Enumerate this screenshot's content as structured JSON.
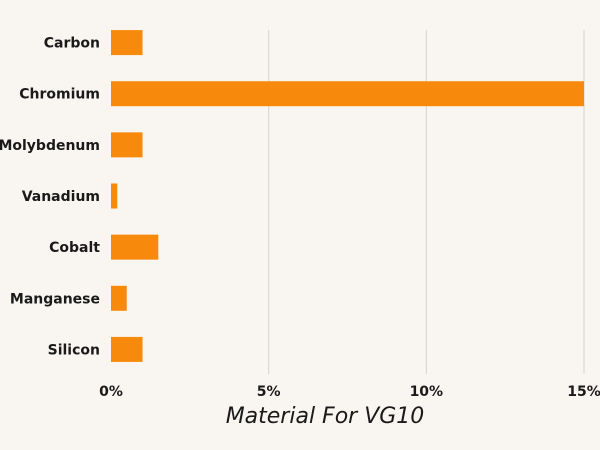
{
  "chart_data": {
    "type": "bar",
    "orientation": "horizontal",
    "title": "",
    "xlabel": "Material For VG10",
    "ylabel": "",
    "categories": [
      "Carbon",
      "Chromium",
      "Molybdenum",
      "Vanadium",
      "Cobalt",
      "Manganese",
      "Silicon"
    ],
    "values": [
      1.0,
      15.0,
      1.0,
      0.2,
      1.5,
      0.5,
      1.0
    ],
    "xlim": [
      0,
      15
    ],
    "xticks": [
      0,
      5,
      10,
      15
    ],
    "xtick_labels": [
      "0%",
      "5%",
      "10%",
      "15%"
    ],
    "grid": "vertical",
    "legend": "none",
    "colors": {
      "bar": "#f78a0c",
      "background": "#f9f5f1",
      "grid": "#d6d2cd",
      "text": "#1a1a1a"
    }
  }
}
